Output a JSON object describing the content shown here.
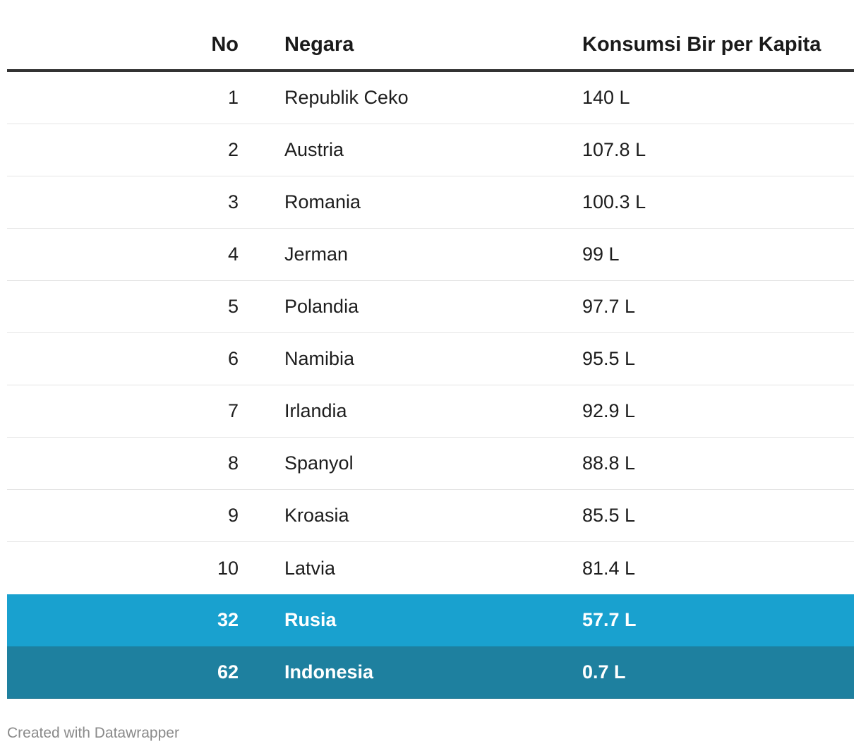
{
  "table": {
    "headers": {
      "no": "No",
      "negara": "Negara",
      "konsumsi": "Konsumsi Bir per Kapita"
    },
    "rows": [
      {
        "no": "1",
        "negara": "Republik Ceko",
        "konsumsi": "140 L"
      },
      {
        "no": "2",
        "negara": "Austria",
        "konsumsi": "107.8 L"
      },
      {
        "no": "3",
        "negara": "Romania",
        "konsumsi": "100.3 L"
      },
      {
        "no": "4",
        "negara": "Jerman",
        "konsumsi": "99 L"
      },
      {
        "no": "5",
        "negara": "Polandia",
        "konsumsi": "97.7 L"
      },
      {
        "no": "6",
        "negara": "Namibia",
        "konsumsi": "95.5 L"
      },
      {
        "no": "7",
        "negara": "Irlandia",
        "konsumsi": "92.9 L"
      },
      {
        "no": "8",
        "negara": "Spanyol",
        "konsumsi": "88.8 L"
      },
      {
        "no": "9",
        "negara": "Kroasia",
        "konsumsi": "85.5 L"
      },
      {
        "no": "10",
        "negara": "Latvia",
        "konsumsi": "81.4 L"
      }
    ],
    "highlighted_rows": [
      {
        "no": "32",
        "negara": "Rusia",
        "konsumsi": "57.7 L",
        "color": "#19a1cf"
      },
      {
        "no": "62",
        "negara": "Indonesia",
        "konsumsi": "0.7 L",
        "color": "#1e809f"
      }
    ]
  },
  "footer": {
    "credit": "Created with Datawrapper"
  },
  "colors": {
    "header_rule": "#333333",
    "row_divider": "#e5e5e5",
    "highlight_text": "#ffffff"
  }
}
